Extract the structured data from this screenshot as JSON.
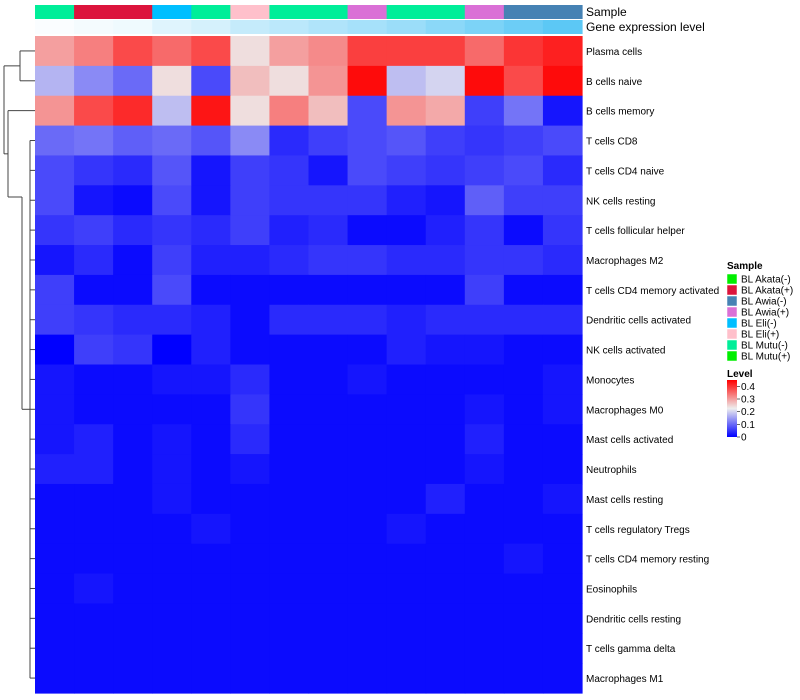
{
  "chart_data": {
    "type": "heatmap",
    "title": "",
    "annotation_labels": [
      "Sample",
      "Gene expression level"
    ],
    "samples": [
      "BL Mutu(-)",
      "BL Akata(+)",
      "BL Akata(+)",
      "BL Eli(-)",
      "BL Mutu(-)",
      "BL Eli(+)",
      "BL Mutu(-)",
      "BL Mutu(-)",
      "BL Awia(+)",
      "BL Mutu(-)",
      "BL Mutu(-)",
      "BL Awia(+)",
      "BL Awia(-)",
      "BL Awia(-)"
    ],
    "expression_level": [
      0.02,
      0.04,
      0.06,
      0.12,
      0.16,
      0.22,
      0.26,
      0.3,
      0.34,
      0.38,
      0.44,
      0.5,
      0.56,
      0.62
    ],
    "rows": [
      "Plasma cells",
      "B cells naive",
      "B cells memory",
      "T cells CD8",
      "T cells CD4 naive",
      "NK cells resting",
      "T cells follicular helper",
      "Macrophages M2",
      "T cells CD4 memory activated",
      "Dendritic cells activated",
      "NK cells activated",
      "Monocytes",
      "Macrophages M0",
      "Mast cells activated",
      "Neutrophils",
      "Mast cells resting",
      "T cells regulatory  Tregs",
      "T cells CD4 memory resting",
      "Eosinophils",
      "Dendritic cells resting",
      "T cells gamma delta",
      "Macrophages M1"
    ],
    "values": [
      [
        0.3,
        0.33,
        0.38,
        0.35,
        0.38,
        0.24,
        0.3,
        0.32,
        0.39,
        0.39,
        0.39,
        0.35,
        0.4,
        0.42
      ],
      [
        0.17,
        0.13,
        0.1,
        0.24,
        0.07,
        0.27,
        0.24,
        0.31,
        0.44,
        0.18,
        0.2,
        0.44,
        0.38,
        0.44
      ],
      [
        0.31,
        0.38,
        0.41,
        0.18,
        0.43,
        0.24,
        0.33,
        0.27,
        0.07,
        0.31,
        0.29,
        0.06,
        0.11,
        0.02
      ],
      [
        0.1,
        0.11,
        0.09,
        0.1,
        0.08,
        0.13,
        0.04,
        0.06,
        0.07,
        0.08,
        0.06,
        0.05,
        0.06,
        0.07
      ],
      [
        0.07,
        0.05,
        0.04,
        0.08,
        0.02,
        0.06,
        0.05,
        0.02,
        0.07,
        0.06,
        0.05,
        0.06,
        0.07,
        0.04
      ],
      [
        0.07,
        0.02,
        0.01,
        0.07,
        0.02,
        0.06,
        0.05,
        0.05,
        0.05,
        0.03,
        0.02,
        0.09,
        0.06,
        0.06
      ],
      [
        0.05,
        0.06,
        0.04,
        0.05,
        0.04,
        0.06,
        0.03,
        0.04,
        0.01,
        0.01,
        0.03,
        0.05,
        0.01,
        0.05
      ],
      [
        0.02,
        0.04,
        0.01,
        0.06,
        0.03,
        0.03,
        0.04,
        0.05,
        0.05,
        0.04,
        0.04,
        0.05,
        0.05,
        0.04
      ],
      [
        0.06,
        0.01,
        0.01,
        0.07,
        0.01,
        0.01,
        0.01,
        0.01,
        0.01,
        0.01,
        0.01,
        0.06,
        0.01,
        0.01
      ],
      [
        0.06,
        0.05,
        0.04,
        0.04,
        0.03,
        0.01,
        0.04,
        0.04,
        0.04,
        0.03,
        0.04,
        0.04,
        0.04,
        0.04
      ],
      [
        0.0,
        0.06,
        0.05,
        0.0,
        0.03,
        0.01,
        0.01,
        0.01,
        0.01,
        0.03,
        0.02,
        0.02,
        0.01,
        0.01
      ],
      [
        0.02,
        0.01,
        0.01,
        0.02,
        0.02,
        0.04,
        0.01,
        0.01,
        0.02,
        0.01,
        0.01,
        0.01,
        0.01,
        0.02
      ],
      [
        0.02,
        0.01,
        0.01,
        0.01,
        0.01,
        0.05,
        0.01,
        0.01,
        0.01,
        0.01,
        0.01,
        0.02,
        0.01,
        0.02
      ],
      [
        0.02,
        0.03,
        0.01,
        0.02,
        0.01,
        0.04,
        0.01,
        0.01,
        0.01,
        0.01,
        0.01,
        0.03,
        0.01,
        0.01
      ],
      [
        0.03,
        0.03,
        0.01,
        0.02,
        0.01,
        0.02,
        0.01,
        0.01,
        0.01,
        0.01,
        0.01,
        0.02,
        0.01,
        0.01
      ],
      [
        0.01,
        0.01,
        0.01,
        0.02,
        0.01,
        0.01,
        0.01,
        0.01,
        0.01,
        0.01,
        0.03,
        0.01,
        0.01,
        0.02
      ],
      [
        0.01,
        0.01,
        0.01,
        0.01,
        0.02,
        0.01,
        0.01,
        0.01,
        0.01,
        0.02,
        0.01,
        0.01,
        0.01,
        0.01
      ],
      [
        0.01,
        0.01,
        0.01,
        0.01,
        0.01,
        0.01,
        0.01,
        0.01,
        0.01,
        0.01,
        0.01,
        0.01,
        0.02,
        0.01
      ],
      [
        0.01,
        0.02,
        0.01,
        0.01,
        0.01,
        0.01,
        0.01,
        0.01,
        0.01,
        0.01,
        0.01,
        0.01,
        0.01,
        0.01
      ],
      [
        0.01,
        0.01,
        0.01,
        0.01,
        0.01,
        0.01,
        0.01,
        0.01,
        0.01,
        0.01,
        0.01,
        0.01,
        0.01,
        0.01
      ],
      [
        0.01,
        0.01,
        0.01,
        0.01,
        0.01,
        0.01,
        0.01,
        0.01,
        0.01,
        0.01,
        0.01,
        0.01,
        0.01,
        0.01
      ],
      [
        0.01,
        0.01,
        0.01,
        0.01,
        0.01,
        0.01,
        0.01,
        0.01,
        0.01,
        0.01,
        0.01,
        0.01,
        0.01,
        0.01
      ]
    ],
    "legend_sample": {
      "title": "Sample",
      "entries": [
        {
          "label": "BL Akata(-)",
          "color": "#00ee00"
        },
        {
          "label": "BL Akata(+)",
          "color": "#dc143c"
        },
        {
          "label": "BL Awia(-)",
          "color": "#4682b4"
        },
        {
          "label": "BL Awia(+)",
          "color": "#da70d6"
        },
        {
          "label": "BL Eli(-)",
          "color": "#00bfff"
        },
        {
          "label": "BL Eli(+)",
          "color": "#ffc0cb"
        },
        {
          "label": "BL Mutu(-)",
          "color": "#00ee99"
        },
        {
          "label": "BL Mutu(+)",
          "color": "#00ee00"
        }
      ]
    },
    "legend_level": {
      "title": "Level",
      "ticks": [
        "0.4",
        "0.3",
        "0.2",
        "0.1",
        "0"
      ],
      "tick_values": [
        0.4,
        0.3,
        0.2,
        0.1,
        0
      ],
      "range": [
        0,
        0.45
      ],
      "color_low": "#0000ff",
      "color_mid": "#eeeeee",
      "color_high": "#ff0000"
    }
  }
}
